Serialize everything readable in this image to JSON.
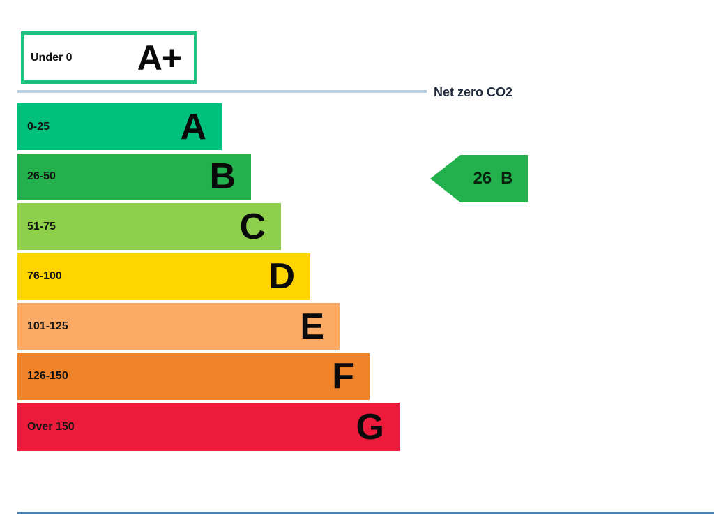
{
  "page": {
    "background": "#ffffff",
    "bottom_rule_color": "#4d80ae"
  },
  "chart_data": {
    "type": "bar",
    "chart_kind": "epc-co2-rating-scale",
    "categories": [
      "A+",
      "A",
      "B",
      "C",
      "D",
      "E",
      "F",
      "G"
    ],
    "band_ranges": [
      "Under 0",
      "0-25",
      "26-50",
      "51-75",
      "76-100",
      "101-125",
      "126-150",
      "Over 150"
    ],
    "top_band": {
      "grade": "A+",
      "range": "Under 0",
      "fill": "#ffffff",
      "border_color": "#1ec27e"
    },
    "bands": [
      {
        "grade": "A",
        "range": "0-25",
        "color": "#00c07e"
      },
      {
        "grade": "B",
        "range": "26-50",
        "color": "#22b14c"
      },
      {
        "grade": "C",
        "range": "51-75",
        "color": "#8ecf4b"
      },
      {
        "grade": "D",
        "range": "76-100",
        "color": "#ffd500"
      },
      {
        "grade": "E",
        "range": "101-125",
        "color": "#fbaa65"
      },
      {
        "grade": "F",
        "range": "126-150",
        "color": "#ee8329"
      },
      {
        "grade": "G",
        "range": "Over 150",
        "color": "#ec1a3b"
      }
    ],
    "reference_line": {
      "label": "Net zero CO2",
      "color": "#bad1e4"
    },
    "current_rating": {
      "value": "26",
      "grade": "B",
      "color": "#22b14c"
    },
    "legend_position": "none",
    "grid": false
  }
}
